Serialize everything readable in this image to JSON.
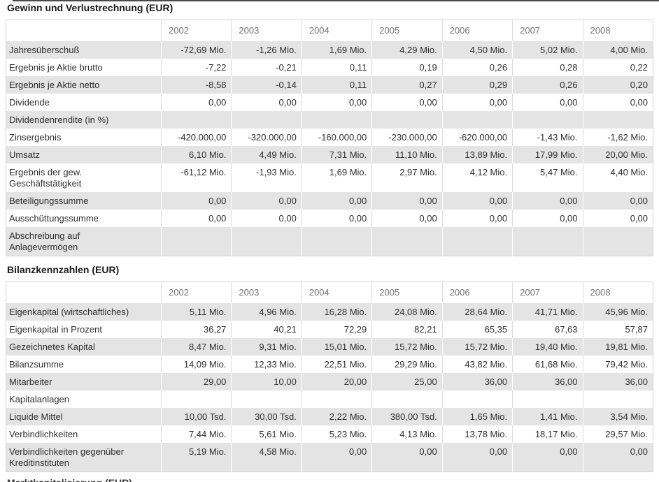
{
  "years": [
    "2002",
    "2003",
    "2004",
    "2005",
    "2006",
    "2007",
    "2008"
  ],
  "sections": [
    {
      "title": "Gewinn und Verlustrechnung (EUR)",
      "rows": [
        {
          "label": "Jahresüberschuß",
          "values": [
            "-72,69 Mio.",
            "-1,26 Mio.",
            "1,69 Mio.",
            "4,29 Mio.",
            "4,50 Mio.",
            "5,02 Mio.",
            "4,00 Mio."
          ]
        },
        {
          "label": "Ergebnis je Aktie brutto",
          "values": [
            "-7,22",
            "-0,21",
            "0,11",
            "0,19",
            "0,26",
            "0,28",
            "0,22"
          ]
        },
        {
          "label": "Ergebnis je Aktie netto",
          "values": [
            "-8,58",
            "-0,14",
            "0,11",
            "0,27",
            "0,29",
            "0,26",
            "0,20"
          ]
        },
        {
          "label": "Dividende",
          "values": [
            "0,00",
            "0,00",
            "0,00",
            "0,00",
            "0,00",
            "0,00",
            "0,00"
          ]
        },
        {
          "label": "Dividendenrendite (in %)",
          "values": [
            "",
            "",
            "",
            "",
            "",
            "",
            ""
          ]
        },
        {
          "label": "Zinsergebnis",
          "values": [
            "-420.000,00",
            "-320.000,00",
            "-160.000,00",
            "-230.000,00",
            "-620.000,00",
            "-1,43 Mio.",
            "-1,62 Mio."
          ]
        },
        {
          "label": "Umsatz",
          "values": [
            "6,10 Mio.",
            "4,49 Mio.",
            "7,31 Mio.",
            "11,10 Mio.",
            "13,89 Mio.",
            "17,99 Mio.",
            "20,00 Mio."
          ]
        },
        {
          "label": "Ergebnis der gew.\nGeschäftstätigkeit",
          "values": [
            "-61,12 Mio.",
            "-1,93 Mio.",
            "1,69 Mio.",
            "2,97 Mio.",
            "4,12 Mio.",
            "5,47 Mio.",
            "4,40 Mio."
          ]
        },
        {
          "label": "Beteiligungssumme",
          "values": [
            "0,00",
            "0,00",
            "0,00",
            "0,00",
            "0,00",
            "0,00",
            "0,00"
          ]
        },
        {
          "label": "Ausschüttungssumme",
          "values": [
            "0,00",
            "0,00",
            "0,00",
            "0,00",
            "0,00",
            "0,00",
            "0,00"
          ]
        },
        {
          "label": "Abschreibung auf\nAnlagevermögen",
          "values": [
            "",
            "",
            "",
            "",
            "",
            "",
            ""
          ]
        }
      ]
    },
    {
      "title": "Bilanzkennzahlen (EUR)",
      "rows": [
        {
          "label": "Eigenkapital (wirtschaftliches)",
          "values": [
            "5,11 Mio.",
            "4,96 Mio.",
            "16,28 Mio.",
            "24,08 Mio.",
            "28,64 Mio.",
            "41,71 Mio.",
            "45,96 Mio."
          ]
        },
        {
          "label": "Eigenkapital in Prozent",
          "values": [
            "36,27",
            "40,21",
            "72,29",
            "82,21",
            "65,35",
            "67,63",
            "57,87"
          ]
        },
        {
          "label": "Gezeichnetes Kapital",
          "values": [
            "8,47 Mio.",
            "9,31 Mio.",
            "15,01 Mio.",
            "15,72 Mio.",
            "15,72 Mio.",
            "19,40 Mio.",
            "19,81 Mio."
          ]
        },
        {
          "label": "Bilanzsumme",
          "values": [
            "14,09 Mio.",
            "12,33 Mio.",
            "22,51 Mio.",
            "29,29 Mio.",
            "43,82 Mio.",
            "61,68 Mio.",
            "79,42 Mio."
          ]
        },
        {
          "label": "Mitarbeiter",
          "values": [
            "29,00",
            "10,00",
            "20,00",
            "25,00",
            "36,00",
            "36,00",
            "36,00"
          ]
        },
        {
          "label": "Kapitalanlagen",
          "values": [
            "",
            "",
            "",
            "",
            "",
            "",
            ""
          ]
        },
        {
          "label": "Liquide Mittel",
          "values": [
            "10,00 Tsd.",
            "30,00 Tsd.",
            "2,22 Mio.",
            "380,00 Tsd.",
            "1,65 Mio.",
            "1,41 Mio.",
            "3,54 Mio."
          ]
        },
        {
          "label": "Verbindlichkeiten",
          "values": [
            "7,44 Mio.",
            "5,61 Mio.",
            "5,23 Mio.",
            "4,13 Mio.",
            "13,78 Mio.",
            "18,17 Mio.",
            "29,57 Mio."
          ]
        },
        {
          "label": "Verbindlichkeiten gegenüber\nKreditinstituten",
          "values": [
            "5,19 Mio.",
            "4,58 Mio.",
            "0,00",
            "0,00",
            "0,00",
            "0,00",
            "0,00"
          ]
        }
      ]
    }
  ],
  "next_section_clipped_title": "Marktkapitalisierung (EUR)",
  "colors": {
    "stripe": "#e4e4e4",
    "table_border": "#d6d6d6",
    "white_row_separator": "#dcdcdc",
    "gray_row_separator": "#ffffff",
    "year_header_text": "#737373",
    "body_text": "#2e2e2e",
    "top_rule": "#4a4a4a"
  }
}
